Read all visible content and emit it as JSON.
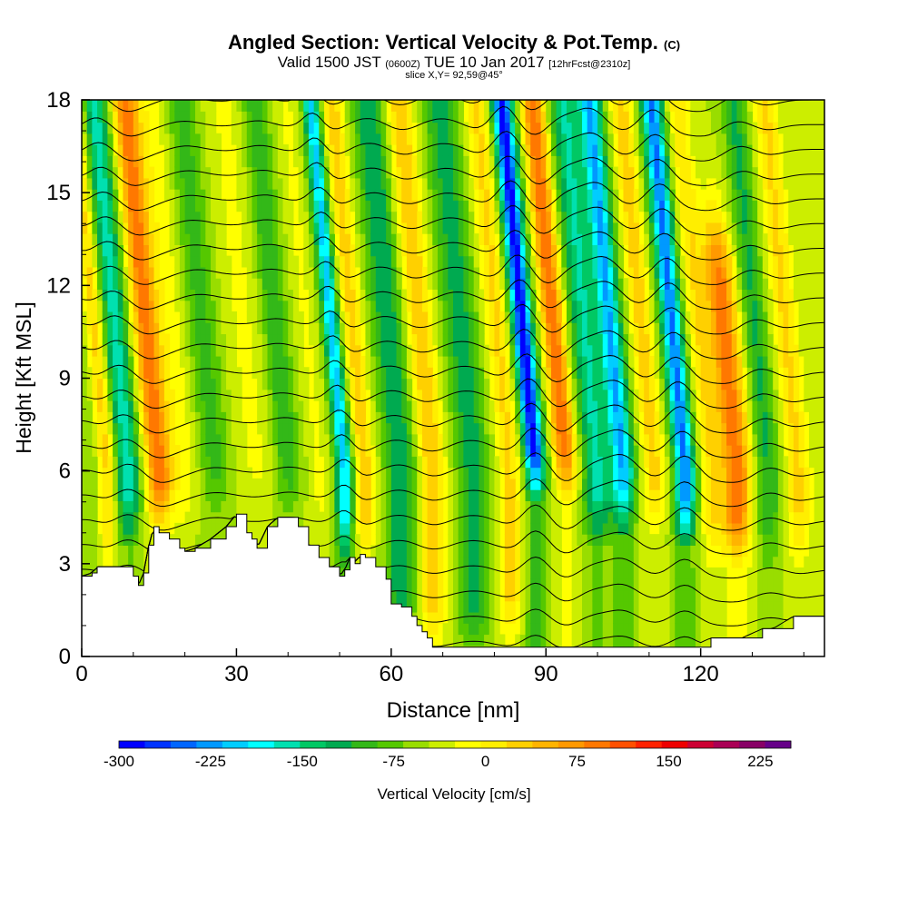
{
  "header": {
    "title": "Angled Section: Vertical Velocity & Pot.Temp.",
    "title_mark": "(C)",
    "valid_prefix": "Valid 1500 JST",
    "valid_small": "(0600Z)",
    "valid_main": "TUE 10 Jan 2017",
    "valid_fcst": "[12hrFcst@2310z]",
    "slice": "slice X,Y= 92,59@45°"
  },
  "chart_data": {
    "type": "heatmap",
    "xlabel": "Distance [nm]",
    "ylabel": "Height [Kft MSL]",
    "xlim": [
      0,
      144
    ],
    "ylim": [
      0,
      18
    ],
    "x_ticks": [
      0,
      30,
      60,
      90,
      120
    ],
    "y_ticks": [
      0,
      3,
      6,
      9,
      12,
      15,
      18
    ],
    "colorbar": {
      "label": "Vertical Velocity [cm/s]",
      "min": -300,
      "max": 250,
      "step": 25,
      "tick_values": [
        -300,
        -225,
        -150,
        -75,
        0,
        75,
        150,
        225
      ],
      "colors": [
        "#0000ff",
        "#0033ff",
        "#0066ff",
        "#0099ff",
        "#00cdff",
        "#00ffff",
        "#00e0b0",
        "#00c864",
        "#00aa50",
        "#33b818",
        "#55c800",
        "#99dd00",
        "#ccee00",
        "#ffff00",
        "#ffee00",
        "#ffd000",
        "#ffb400",
        "#ff9900",
        "#ff7800",
        "#ff5000",
        "#ff2200",
        "#ee0000",
        "#cc0033",
        "#aa0055",
        "#880066",
        "#660088"
      ]
    },
    "terrain_profile": {
      "x": [
        0,
        2,
        3,
        5,
        8,
        10,
        11,
        12,
        13,
        14,
        15,
        17,
        19,
        20,
        22,
        25,
        28,
        30,
        32,
        33,
        34,
        36,
        38,
        40,
        42,
        44,
        46,
        48,
        50,
        51,
        52,
        53,
        54,
        55,
        57,
        59,
        60,
        62,
        64,
        65,
        66,
        67,
        68,
        70,
        74,
        80,
        90,
        100,
        106,
        108,
        112,
        114,
        118,
        122,
        126,
        128,
        132,
        134,
        138,
        144
      ],
      "height": [
        2.6,
        2.7,
        2.9,
        2.9,
        2.9,
        2.6,
        2.3,
        2.7,
        3.6,
        4.2,
        4.0,
        3.8,
        3.5,
        3.4,
        3.5,
        3.8,
        4.2,
        4.6,
        4.0,
        3.8,
        3.5,
        4.2,
        4.5,
        4.5,
        4.2,
        3.6,
        3.2,
        2.9,
        2.6,
        2.8,
        3.2,
        3.0,
        3.3,
        3.2,
        2.9,
        2.5,
        1.7,
        1.6,
        1.3,
        1.0,
        0.8,
        0.6,
        0.3,
        0.3,
        0.3,
        0.3,
        0.3,
        0.3,
        0.3,
        0.3,
        0.3,
        0.3,
        0.3,
        0.6,
        0.6,
        0.6,
        0.9,
        0.9,
        1.3,
        1.3
      ]
    },
    "velocity_bands": [
      {
        "x": 2,
        "top": 18,
        "bottom": 2.8,
        "w": -30,
        "width": 2.0
      },
      {
        "x": 5,
        "top": 18,
        "bottom": 2.8,
        "w": 90,
        "width": 2.0
      },
      {
        "x": 9,
        "top": 18,
        "bottom": 3.5,
        "w": -140,
        "width": 2.5
      },
      {
        "x": 15,
        "top": 18,
        "bottom": 4.0,
        "w": 170,
        "width": 2.6
      },
      {
        "x": 20,
        "top": 18,
        "bottom": 4.0,
        "w": 40,
        "width": 2.5
      },
      {
        "x": 26,
        "top": 18,
        "bottom": 4.5,
        "w": -60,
        "width": 3.0
      },
      {
        "x": 34,
        "top": 18,
        "bottom": 4.5,
        "w": 30,
        "width": 4.0
      },
      {
        "x": 40,
        "top": 18,
        "bottom": 4.5,
        "w": -70,
        "width": 2.6
      },
      {
        "x": 46,
        "top": 18,
        "bottom": 3.5,
        "w": 30,
        "width": 2.0
      },
      {
        "x": 51,
        "top": 18,
        "bottom": 3.0,
        "w": -190,
        "width": 1.6
      },
      {
        "x": 55,
        "top": 18,
        "bottom": 3.0,
        "w": 90,
        "width": 2.0
      },
      {
        "x": 62,
        "top": 18,
        "bottom": 0.5,
        "w": -100,
        "width": 3.0
      },
      {
        "x": 68,
        "top": 18,
        "bottom": 0.3,
        "w": 100,
        "width": 2.6
      },
      {
        "x": 76,
        "top": 18,
        "bottom": 0.3,
        "w": -90,
        "width": 3.2
      },
      {
        "x": 83,
        "top": 18,
        "bottom": 0.3,
        "w": 80,
        "width": 2.4
      },
      {
        "x": 88,
        "top": 18,
        "bottom": 5.0,
        "w": -290,
        "width": 2.0
      },
      {
        "x": 94,
        "top": 18,
        "bottom": 5.0,
        "w": 175,
        "width": 2.2
      },
      {
        "x": 100,
        "top": 18,
        "bottom": 3.5,
        "w": -130,
        "width": 2.8
      },
      {
        "x": 105,
        "top": 18,
        "bottom": 4.0,
        "w": -200,
        "width": 2.2
      },
      {
        "x": 111,
        "top": 18,
        "bottom": 4.0,
        "w": 90,
        "width": 2.0
      },
      {
        "x": 117,
        "top": 18,
        "bottom": 3.5,
        "w": -230,
        "width": 2.0
      },
      {
        "x": 122,
        "top": 18,
        "bottom": 3.0,
        "w": 70,
        "width": 2.0
      },
      {
        "x": 127,
        "top": 12,
        "bottom": 3.0,
        "w": 165,
        "width": 3.0
      },
      {
        "x": 133,
        "top": 18,
        "bottom": 3.0,
        "w": -80,
        "width": 2.4
      },
      {
        "x": 139,
        "top": 18,
        "bottom": 3.0,
        "w": 80,
        "width": 2.4
      }
    ],
    "isentrope_levels": [
      0.4,
      1.2,
      2.0,
      2.8,
      3.6,
      4.4,
      5.2,
      6.0,
      6.8,
      7.6,
      8.4,
      9.2,
      10.0,
      10.8,
      11.6,
      12.4,
      13.2,
      14.0,
      14.8,
      15.6,
      16.4,
      17.2,
      18.0
    ]
  }
}
